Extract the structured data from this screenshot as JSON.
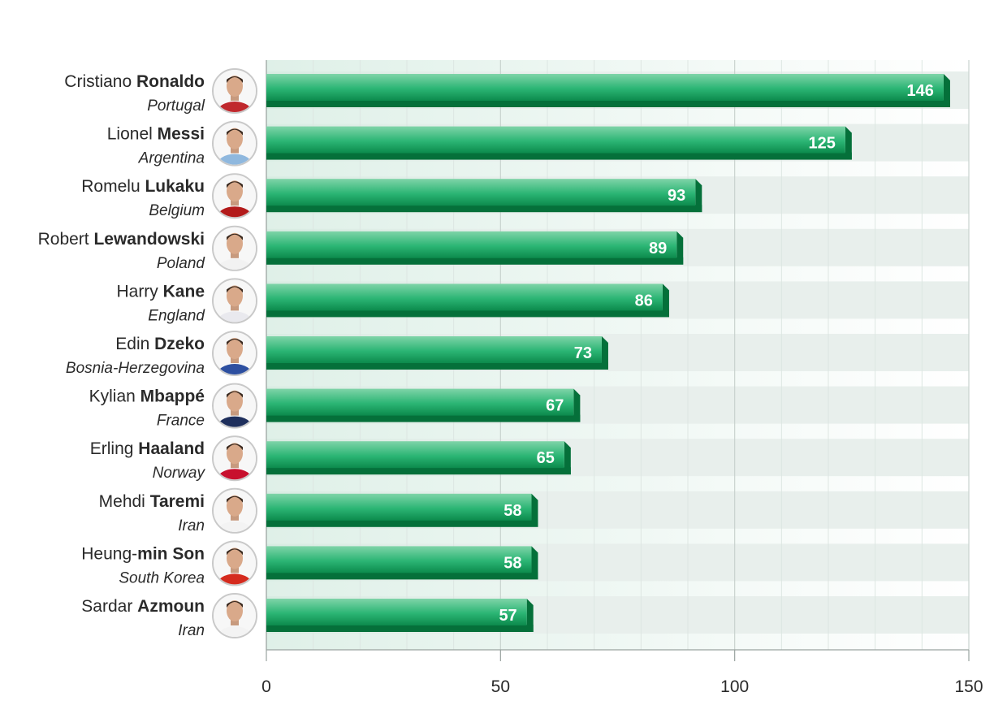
{
  "chart_data": {
    "type": "bar",
    "orientation": "horizontal",
    "categories": [
      {
        "first": "Cristiano ",
        "last": "Ronaldo",
        "country": "Portugal",
        "jersey": "#c0282d"
      },
      {
        "first": "Lionel ",
        "last": "Messi",
        "country": "Argentina",
        "jersey": "#8fb8de"
      },
      {
        "first": "Romelu ",
        "last": "Lukaku",
        "country": "Belgium",
        "jersey": "#b31b1b"
      },
      {
        "first": "Robert ",
        "last": "Lewandowski",
        "country": "Poland",
        "jersey": "#f2f2f2"
      },
      {
        "first": "Harry ",
        "last": "Kane",
        "country": "England",
        "jersey": "#e9e9ee"
      },
      {
        "first": "Edin ",
        "last": "Dzeko",
        "country": "Bosnia-Herzegovina",
        "jersey": "#2d4fa0"
      },
      {
        "first": "Kylian ",
        "last": "Mbappé",
        "country": "France",
        "jersey": "#1e2f5c"
      },
      {
        "first": "Erling ",
        "last": "Haaland",
        "country": "Norway",
        "jersey": "#c8102e"
      },
      {
        "first": "Mehdi ",
        "last": "Taremi",
        "country": "Iran",
        "jersey": "#f3f3f3"
      },
      {
        "first": "Heung-",
        "last": "min Son",
        "country": "South Korea",
        "jersey": "#d52b1e"
      },
      {
        "first": "Sardar ",
        "last": "Azmoun",
        "country": "Iran",
        "jersey": "#f3f3f3"
      }
    ],
    "values": [
      146,
      125,
      93,
      89,
      86,
      73,
      67,
      65,
      58,
      58,
      57
    ],
    "xlim": [
      0,
      150
    ],
    "xticks": [
      0,
      50,
      100,
      150
    ],
    "grid": true,
    "colors": {
      "bar_light": "#7fd4a8",
      "bar_mid": "#2bb574",
      "bar_dark": "#0c8a4c",
      "bar_shadow": "#05703a",
      "label": "#ffffff",
      "text": "#2a2a2a",
      "band": "#e8efec",
      "grid": "#c9d3cf"
    }
  }
}
